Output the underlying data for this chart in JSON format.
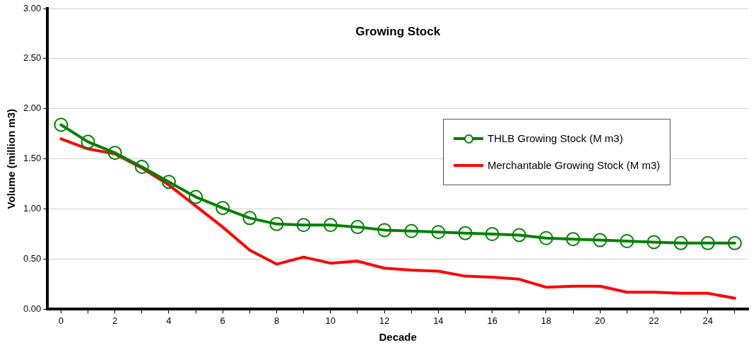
{
  "chart_data": {
    "type": "line",
    "title": "Growing Stock",
    "xlabel": "Decade",
    "ylabel": "Volume (million m3)",
    "x": [
      0,
      1,
      2,
      3,
      4,
      5,
      6,
      7,
      8,
      9,
      10,
      11,
      12,
      13,
      14,
      15,
      16,
      17,
      18,
      19,
      20,
      21,
      22,
      23,
      24,
      25
    ],
    "series": [
      {
        "name": "THLB Growing Stock (M m3)",
        "color": "#008000",
        "marker": "circle",
        "values": [
          1.84,
          1.67,
          1.56,
          1.42,
          1.27,
          1.12,
          1.01,
          0.91,
          0.85,
          0.84,
          0.84,
          0.82,
          0.79,
          0.78,
          0.77,
          0.76,
          0.75,
          0.74,
          0.71,
          0.7,
          0.69,
          0.68,
          0.67,
          0.66,
          0.66,
          0.66
        ]
      },
      {
        "name": "Merchantable Growing Stock (M m3)",
        "color": "#ff0000",
        "marker": "none",
        "values": [
          1.7,
          1.6,
          1.55,
          1.41,
          1.24,
          1.03,
          0.82,
          0.59,
          0.45,
          0.52,
          0.46,
          0.48,
          0.41,
          0.39,
          0.38,
          0.33,
          0.32,
          0.3,
          0.22,
          0.23,
          0.23,
          0.17,
          0.17,
          0.16,
          0.16,
          0.11
        ]
      }
    ],
    "xlim": [
      -0.5,
      25.5
    ],
    "xticks": [
      0,
      {
        "value": 1,
        "label": null
      },
      2,
      {
        "value": 3,
        "label": null
      },
      4,
      {
        "value": 5,
        "label": null
      },
      6,
      {
        "value": 7,
        "label": null
      },
      8,
      {
        "value": 9,
        "label": null
      },
      10,
      {
        "value": 11,
        "label": null
      },
      12,
      {
        "value": 13,
        "label": null
      },
      14,
      {
        "value": 15,
        "label": null
      },
      16,
      {
        "value": 17,
        "label": null
      },
      18,
      {
        "value": 19,
        "label": null
      },
      20,
      {
        "value": 21,
        "label": null
      },
      22,
      {
        "value": 23,
        "label": null
      },
      24,
      {
        "value": 25,
        "label": null
      }
    ],
    "ylim": [
      0,
      3
    ],
    "yticks": [
      {
        "value": 0,
        "label": "0.00"
      },
      {
        "value": 0.5,
        "label": "0.50"
      },
      {
        "value": 1,
        "label": "1.00"
      },
      {
        "value": 1.5,
        "label": "1.50"
      },
      {
        "value": 2,
        "label": "2.00"
      },
      {
        "value": 2.5,
        "label": "2.50"
      },
      {
        "value": 3,
        "label": "3.00"
      }
    ],
    "grid": "y",
    "legend": "right",
    "line_style": "solid"
  }
}
